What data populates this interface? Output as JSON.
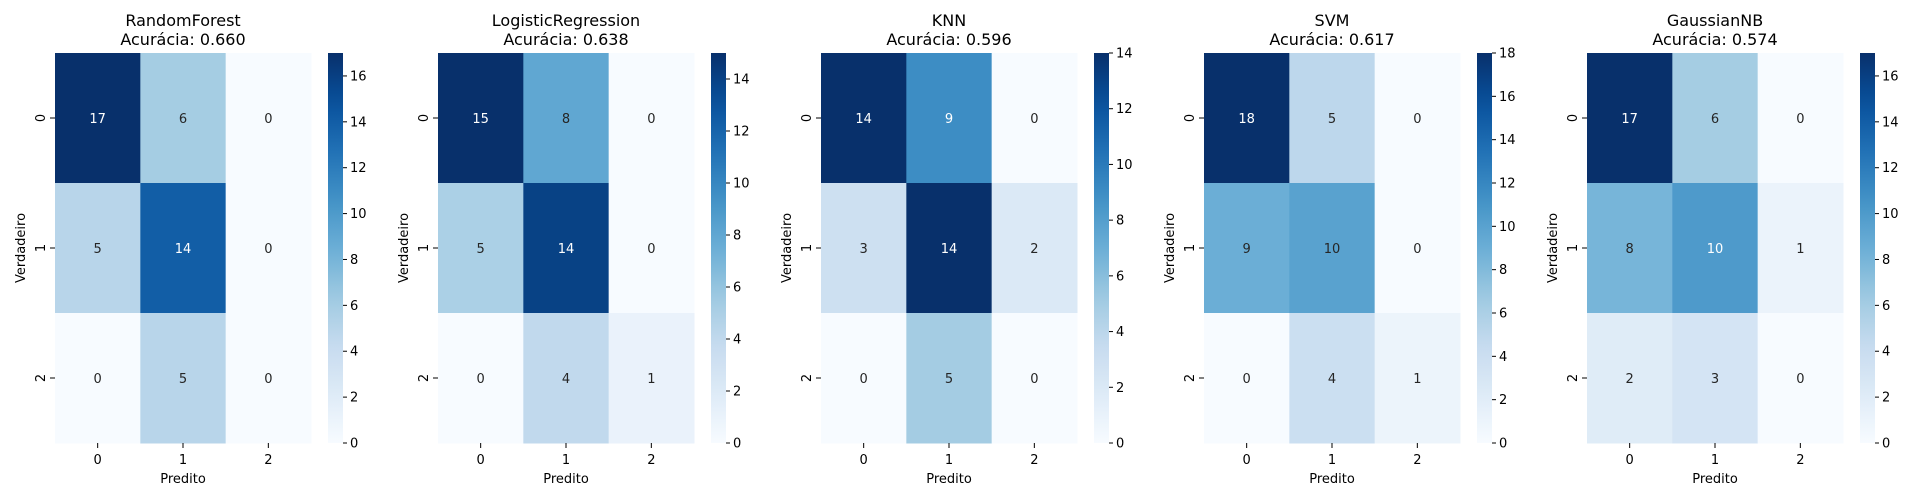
{
  "chart_data": [
    {
      "type": "heatmap",
      "title": "RandomForest",
      "subtitle": "Acurácia: 0.660",
      "xlabel": "Predito",
      "ylabel": "Verdadeiro",
      "x_ticks": [
        "0",
        "1",
        "2"
      ],
      "y_ticks": [
        "0",
        "1",
        "2"
      ],
      "matrix": [
        [
          17,
          6,
          0
        ],
        [
          5,
          14,
          0
        ],
        [
          0,
          5,
          0
        ]
      ],
      "colorbar_ticks": [
        0,
        2,
        4,
        6,
        8,
        10,
        12,
        14,
        16
      ],
      "vmin": 0,
      "vmax": 17
    },
    {
      "type": "heatmap",
      "title": "LogisticRegression",
      "subtitle": "Acurácia: 0.638",
      "xlabel": "Predito",
      "ylabel": "Verdadeiro",
      "x_ticks": [
        "0",
        "1",
        "2"
      ],
      "y_ticks": [
        "0",
        "1",
        "2"
      ],
      "matrix": [
        [
          15,
          8,
          0
        ],
        [
          5,
          14,
          0
        ],
        [
          0,
          4,
          1
        ]
      ],
      "colorbar_ticks": [
        0,
        2,
        4,
        6,
        8,
        10,
        12,
        14
      ],
      "vmin": 0,
      "vmax": 15
    },
    {
      "type": "heatmap",
      "title": "KNN",
      "subtitle": "Acurácia: 0.596",
      "xlabel": "Predito",
      "ylabel": "Verdadeiro",
      "x_ticks": [
        "0",
        "1",
        "2"
      ],
      "y_ticks": [
        "0",
        "1",
        "2"
      ],
      "matrix": [
        [
          14,
          9,
          0
        ],
        [
          3,
          14,
          2
        ],
        [
          0,
          5,
          0
        ]
      ],
      "colorbar_ticks": [
        0,
        2,
        4,
        6,
        8,
        10,
        12,
        14
      ],
      "vmin": 0,
      "vmax": 14
    },
    {
      "type": "heatmap",
      "title": "SVM",
      "subtitle": "Acurácia: 0.617",
      "xlabel": "Predito",
      "ylabel": "Verdadeiro",
      "x_ticks": [
        "0",
        "1",
        "2"
      ],
      "y_ticks": [
        "0",
        "1",
        "2"
      ],
      "matrix": [
        [
          18,
          5,
          0
        ],
        [
          9,
          10,
          0
        ],
        [
          0,
          4,
          1
        ]
      ],
      "colorbar_ticks": [
        0,
        2,
        4,
        6,
        8,
        10,
        12,
        14,
        16,
        18
      ],
      "vmin": 0,
      "vmax": 18
    },
    {
      "type": "heatmap",
      "title": "GaussianNB",
      "subtitle": "Acurácia: 0.574",
      "xlabel": "Predito",
      "ylabel": "Verdadeiro",
      "x_ticks": [
        "0",
        "1",
        "2"
      ],
      "y_ticks": [
        "0",
        "1",
        "2"
      ],
      "matrix": [
        [
          17,
          6,
          0
        ],
        [
          8,
          10,
          1
        ],
        [
          2,
          3,
          0
        ]
      ],
      "colorbar_ticks": [
        0,
        2,
        4,
        6,
        8,
        10,
        12,
        14,
        16
      ],
      "vmin": 0,
      "vmax": 17
    }
  ],
  "colormap": {
    "name": "Blues",
    "stops": [
      "#f7fbff",
      "#deebf7",
      "#c6dbef",
      "#9ecae1",
      "#6baed6",
      "#4292c6",
      "#2171b5",
      "#08519c",
      "#08306b"
    ]
  },
  "text_colors": {
    "dark": "#262626",
    "light": "#ffffff"
  }
}
